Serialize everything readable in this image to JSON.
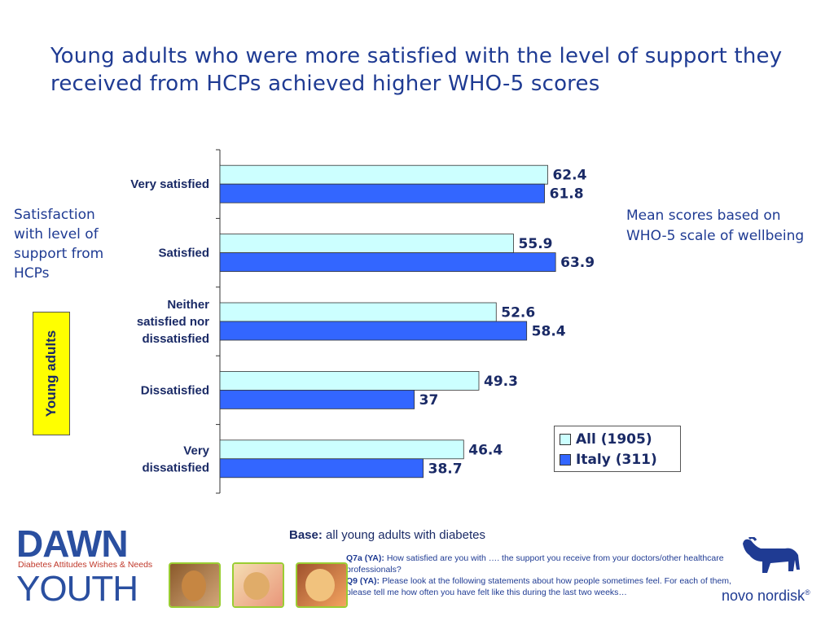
{
  "title": "Young adults who were more satisfied with the level of support they received from HCPs achieved higher WHO-5 scores",
  "side_label": "Satisfaction with level of support from HCPs",
  "group_label": "Young adults",
  "right_note": "Mean scores based on WHO-5 scale of wellbeing",
  "base": {
    "label": "Base:",
    "text": "all young adults with diabetes"
  },
  "questions": {
    "q7a_label": "Q7a (YA):",
    "q7a_text": "How satisfied are you with …. the support you receive from your doctors/other healthcare professionals?",
    "q9_label": "Q9 (YA):",
    "q9_text": "Please look at the following statements about how people sometimes feel. For each of them, please tell me how often you have felt like this during the last two weeks…"
  },
  "logos": {
    "dawn": "DAWN",
    "dawn_tagline": "Diabetes Attitudes Wishes & Needs",
    "youth": "YOUTH",
    "novo": "novo nordisk",
    "novo_mark": "®"
  },
  "colors": {
    "all": "#ccffff",
    "italy": "#3366ff",
    "text": "#1a2a66",
    "title": "#1f3b93"
  },
  "chart_data": {
    "type": "bar",
    "orientation": "horizontal",
    "categories": [
      "Very satisfied",
      "Satisfied",
      "Neither satisfied nor dissatisfied",
      "Dissatisfied",
      "Very dissatisfied"
    ],
    "category_lines": [
      [
        "Very satisfied"
      ],
      [
        "Satisfied"
      ],
      [
        "Neither",
        "satisfied nor",
        "dissatisfied"
      ],
      [
        "Dissatisfied"
      ],
      [
        "Very",
        "dissatisfied"
      ]
    ],
    "series": [
      {
        "name": "All (1905)",
        "values": [
          62.4,
          55.9,
          52.6,
          49.3,
          46.4
        ]
      },
      {
        "name": "Italy (311)",
        "values": [
          61.8,
          63.9,
          58.4,
          37,
          38.7
        ]
      }
    ],
    "xlim": [
      0,
      100
    ],
    "grid": false,
    "legend": "bottom-right"
  }
}
